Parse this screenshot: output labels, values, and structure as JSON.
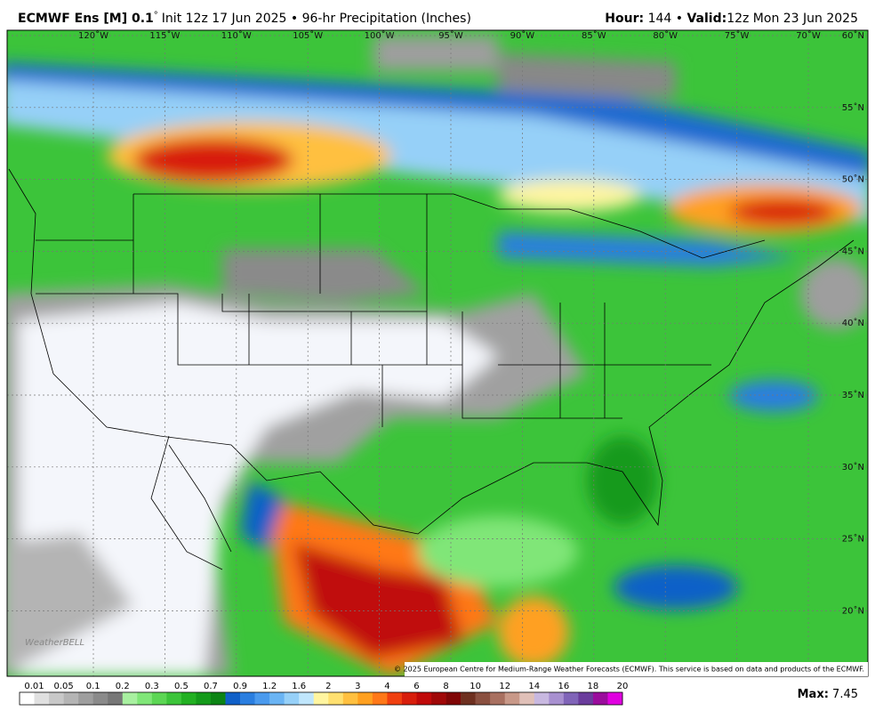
{
  "header": {
    "model": "ECMWF Ens [M] 0.1",
    "degree": "°",
    "init": "Init 12z 17 Jun 2025 • 96-hr Precipitation (Inches)",
    "hour_label": "Hour:",
    "hour": "144 •",
    "valid_label": "Valid:",
    "valid": "12z Mon 23 Jun 2025"
  },
  "map": {
    "longitudes": [
      "120˚W",
      "115˚W",
      "110˚W",
      "105˚W",
      "100˚W",
      "95˚W",
      "90˚W",
      "85˚W",
      "80˚W",
      "75˚W",
      "70˚W"
    ],
    "latitudes": [
      "60˚N",
      "55˚N",
      "50˚N",
      "45˚N",
      "40˚N",
      "35˚N",
      "30˚N",
      "25˚N",
      "20˚N"
    ],
    "logo": "WeatherBELL",
    "copyright": "© 2025 European Centre for Medium-Range Weather Forecasts (ECMWF). This service is based on data and products of the ECMWF."
  },
  "colorbar": {
    "labels": [
      "0.01",
      "0.05",
      "0.1",
      "0.2",
      "0.3",
      "0.5",
      "0.7",
      "0.9",
      "1.2",
      "1.6",
      "2",
      "3",
      "4",
      "6",
      "8",
      "10",
      "12",
      "14",
      "16",
      "18",
      "20"
    ],
    "colors": [
      "#ffffff",
      "#e0e0e0",
      "#c8c8c8",
      "#b4b4b4",
      "#9e9e9e",
      "#8a8a8a",
      "#777777",
      "#a8f0a0",
      "#80e678",
      "#5cd654",
      "#3cc43a",
      "#22b022",
      "#149a1a",
      "#0c8414",
      "#1060c8",
      "#2a7ee0",
      "#4a9aee",
      "#6ab4f4",
      "#96d0f8",
      "#c0e6fc",
      "#fff5a0",
      "#ffe070",
      "#ffc040",
      "#ffa020",
      "#ff7818",
      "#f04010",
      "#d81e0c",
      "#c00a0a",
      "#a00808",
      "#800606",
      "#6e3020",
      "#8a5040",
      "#a87060",
      "#c89888",
      "#e0c0b8",
      "#c8b8e0",
      "#a890d0",
      "#8064b8",
      "#6a3c9c",
      "#9a0c9c",
      "#e000e0"
    ]
  },
  "max": {
    "label": "Max:",
    "value": "7.45"
  }
}
